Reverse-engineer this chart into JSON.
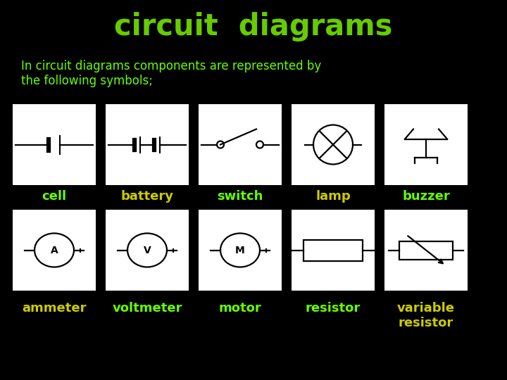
{
  "title": "circuit  diagrams",
  "title_color": "#66cc00",
  "bg_color": "#000000",
  "card_color": "#ffffff",
  "text_color_green": "#66ff00",
  "text_color_yellow": "#ccff00",
  "subtitle": "In circuit diagrams components are represented by\nthe following symbols;",
  "subtitle_fontsize": 12,
  "row1_labels": [
    "cell",
    "battery",
    "switch",
    "lamp",
    "buzzer"
  ],
  "row2_labels": [
    "ammeter",
    "voltmeter",
    "motor",
    "resistor",
    "variable\nresistor"
  ],
  "row1_label_colors": [
    "#66ff00",
    "#cccc00",
    "#66ff00",
    "#cccc00",
    "#66ff00"
  ],
  "row2_label_colors": [
    "#cccc00",
    "#66ff00",
    "#66ff00",
    "#66ff00",
    "#cccc00"
  ],
  "label_fontsize": 13,
  "title_fontsize": 30
}
